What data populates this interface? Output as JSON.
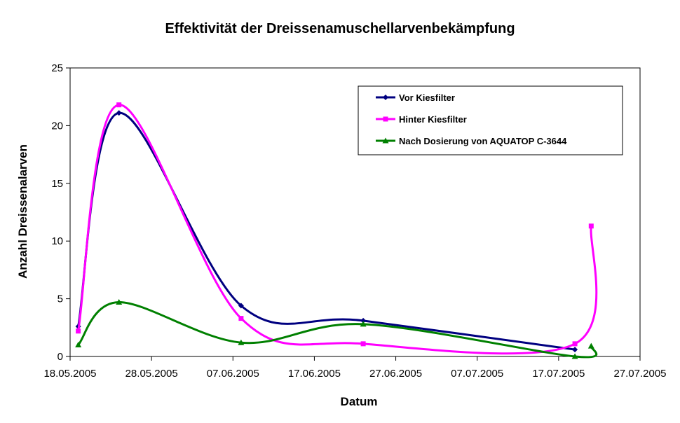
{
  "chart_data": {
    "type": "line",
    "title": "Effektivität der Dreissenamuschellarvenbekämpfung",
    "xlabel": "Datum",
    "ylabel": "Anzahl Dreissenalarven",
    "ylim": [
      0,
      25
    ],
    "yticks": [
      0,
      5,
      10,
      15,
      20,
      25
    ],
    "xlim": [
      "18.05.2005",
      "27.07.2005"
    ],
    "xticks": [
      "18.05.2005",
      "28.05.2005",
      "07.06.2005",
      "17.06.2005",
      "27.06.2005",
      "07.07.2005",
      "17.07.2005",
      "27.07.2005"
    ],
    "grid": false,
    "legend_position": "top-right",
    "smooth": true,
    "series": [
      {
        "name": "Vor Kiesfilter",
        "color": "#000080",
        "marker": "diamond",
        "x": [
          "19.05.2005",
          "24.05.2005",
          "08.06.2005",
          "23.06.2005",
          "19.07.2005"
        ],
        "values": [
          2.6,
          21.1,
          4.4,
          3.1,
          0.6
        ]
      },
      {
        "name": "Hinter Kiesfilter",
        "color": "#ff00ff",
        "marker": "square",
        "x": [
          "19.05.2005",
          "24.05.2005",
          "08.06.2005",
          "23.06.2005",
          "19.07.2005",
          "21.07.2005"
        ],
        "values": [
          2.2,
          21.8,
          3.3,
          1.1,
          1.1,
          11.3
        ]
      },
      {
        "name": "Nach Dosierung von AQUATOP C-3644",
        "color": "#008000",
        "marker": "triangle",
        "x": [
          "19.05.2005",
          "24.05.2005",
          "08.06.2005",
          "23.06.2005",
          "19.07.2005",
          "21.07.2005"
        ],
        "values": [
          1.0,
          4.7,
          1.2,
          2.8,
          0.0,
          0.9
        ]
      }
    ]
  }
}
